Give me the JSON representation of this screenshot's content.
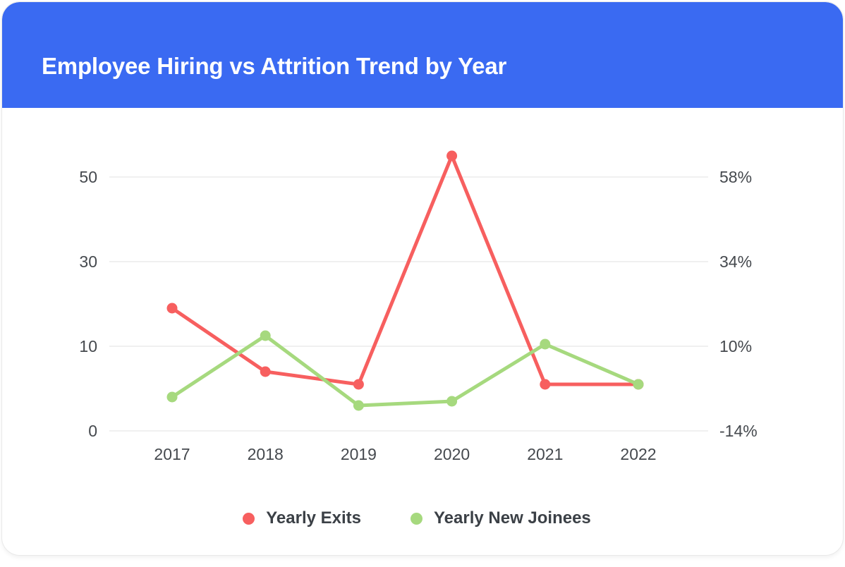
{
  "header": {
    "title": "Employee Hiring vs Attrition Trend by Year",
    "background": "#3A6AF2"
  },
  "chart_data": {
    "type": "line",
    "title": "Employee Hiring vs Attrition Trend by Year",
    "categories": [
      "2017",
      "2018",
      "2019",
      "2020",
      "2021",
      "2022"
    ],
    "series": [
      {
        "name": "Yearly Exits",
        "color": "#F75F5F",
        "values": [
          19,
          7,
          5.5,
          55,
          5.5,
          5.5
        ]
      },
      {
        "name": "Yearly New Joinees",
        "color": "#A6D97E",
        "values": [
          4,
          12.5,
          3,
          3.5,
          10.5,
          5.5
        ]
      }
    ],
    "left_axis": {
      "tick_labels": [
        "0",
        "10",
        "30",
        "50"
      ],
      "tick_values": [
        0,
        10,
        30,
        50
      ]
    },
    "right_axis": {
      "tick_labels": [
        "-14%",
        "10%",
        "34%",
        "58%"
      ]
    },
    "grid": "horizontal",
    "legend_position": "bottom",
    "colors": {
      "grid": "#ECECEC",
      "axis_text": "#45494E",
      "legend_text": "#3B4046"
    }
  }
}
